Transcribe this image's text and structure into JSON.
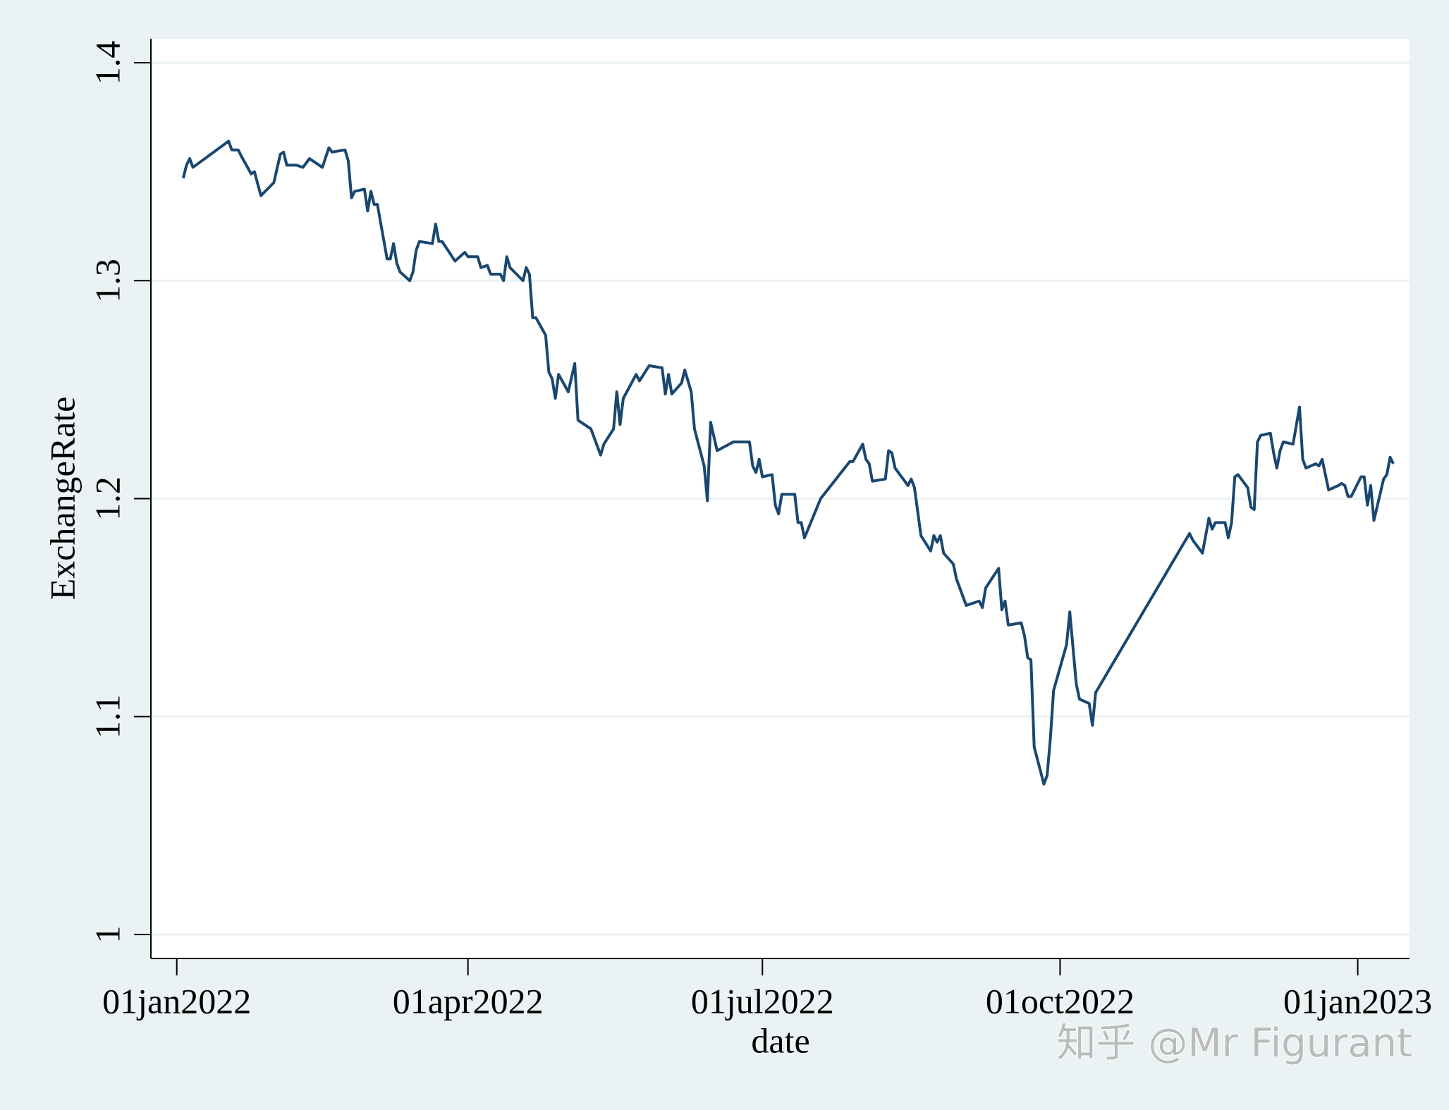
{
  "chart_data": {
    "type": "line",
    "y_label": "ExchangeRate",
    "x_label": "date",
    "watermark": "知乎 @Mr Figurant",
    "x": [
      "2022-01-03",
      "2022-01-04",
      "2022-01-05",
      "2022-01-06",
      "2022-01-17",
      "2022-01-18",
      "2022-01-20",
      "2022-01-21",
      "2022-01-24",
      "2022-01-25",
      "2022-01-27",
      "2022-01-31",
      "2022-02-02",
      "2022-02-03",
      "2022-02-04",
      "2022-02-07",
      "2022-02-09",
      "2022-02-11",
      "2022-02-15",
      "2022-02-17",
      "2022-02-18",
      "2022-02-22",
      "2022-02-23",
      "2022-02-24",
      "2022-02-25",
      "2022-02-28",
      "2022-03-01",
      "2022-03-02",
      "2022-03-03",
      "2022-03-04",
      "2022-03-07",
      "2022-03-08",
      "2022-03-09",
      "2022-03-10",
      "2022-03-11",
      "2022-03-14",
      "2022-03-15",
      "2022-03-16",
      "2022-03-17",
      "2022-03-21",
      "2022-03-22",
      "2022-03-23",
      "2022-03-24",
      "2022-03-28",
      "2022-03-31",
      "2022-04-01",
      "2022-04-04",
      "2022-04-05",
      "2022-04-07",
      "2022-04-08",
      "2022-04-11",
      "2022-04-12",
      "2022-04-13",
      "2022-04-14",
      "2022-04-18",
      "2022-04-19",
      "2022-04-20",
      "2022-04-21",
      "2022-04-22",
      "2022-04-25",
      "2022-04-26",
      "2022-04-27",
      "2022-04-28",
      "2022-04-29",
      "2022-05-02",
      "2022-05-04",
      "2022-05-05",
      "2022-05-09",
      "2022-05-12",
      "2022-05-13",
      "2022-05-16",
      "2022-05-17",
      "2022-05-18",
      "2022-05-19",
      "2022-05-23",
      "2022-05-24",
      "2022-05-27",
      "2022-05-31",
      "2022-06-01",
      "2022-06-02",
      "2022-06-03",
      "2022-06-06",
      "2022-06-07",
      "2022-06-09",
      "2022-06-10",
      "2022-06-13",
      "2022-06-14",
      "2022-06-15",
      "2022-06-17",
      "2022-06-22",
      "2022-06-27",
      "2022-06-28",
      "2022-06-29",
      "2022-06-30",
      "2022-07-01",
      "2022-07-04",
      "2022-07-05",
      "2022-07-06",
      "2022-07-07",
      "2022-07-11",
      "2022-07-12",
      "2022-07-13",
      "2022-07-14",
      "2022-07-19",
      "2022-07-28",
      "2022-07-29",
      "2022-08-01",
      "2022-08-02",
      "2022-08-03",
      "2022-08-04",
      "2022-08-08",
      "2022-08-09",
      "2022-08-10",
      "2022-08-11",
      "2022-08-15",
      "2022-08-16",
      "2022-08-17",
      "2022-08-19",
      "2022-08-22",
      "2022-08-23",
      "2022-08-24",
      "2022-08-25",
      "2022-08-26",
      "2022-08-29",
      "2022-08-30",
      "2022-09-01",
      "2022-09-02",
      "2022-09-06",
      "2022-09-07",
      "2022-09-08",
      "2022-09-12",
      "2022-09-13",
      "2022-09-14",
      "2022-09-15",
      "2022-09-19",
      "2022-09-20",
      "2022-09-21",
      "2022-09-22",
      "2022-09-23",
      "2022-09-26",
      "2022-09-27",
      "2022-09-28",
      "2022-09-29",
      "2022-10-03",
      "2022-10-04",
      "2022-10-06",
      "2022-10-07",
      "2022-10-10",
      "2022-10-11",
      "2022-10-12",
      "2022-11-10",
      "2022-11-11",
      "2022-11-14",
      "2022-11-16",
      "2022-11-17",
      "2022-11-18",
      "2022-11-21",
      "2022-11-22",
      "2022-11-23",
      "2022-11-24",
      "2022-11-25",
      "2022-11-28",
      "2022-11-29",
      "2022-11-30",
      "2022-12-01",
      "2022-12-02",
      "2022-12-05",
      "2022-12-06",
      "2022-12-07",
      "2022-12-08",
      "2022-12-09",
      "2022-12-12",
      "2022-12-14",
      "2022-12-15",
      "2022-12-16",
      "2022-12-19",
      "2022-12-20",
      "2022-12-21",
      "2022-12-22",
      "2022-12-23",
      "2022-12-26",
      "2022-12-27",
      "2022-12-28",
      "2022-12-29",
      "2022-12-30",
      "2023-01-02",
      "2023-01-03",
      "2023-01-04",
      "2023-01-05",
      "2023-01-06",
      "2023-01-09",
      "2023-01-10",
      "2023-01-11",
      "2023-01-12"
    ],
    "series": [
      {
        "color": "#1a476f",
        "values": [
          1.347,
          1.353,
          1.356,
          1.352,
          1.364,
          1.36,
          1.36,
          1.357,
          1.349,
          1.35,
          1.339,
          1.345,
          1.358,
          1.359,
          1.353,
          1.353,
          1.352,
          1.356,
          1.352,
          1.361,
          1.359,
          1.36,
          1.355,
          1.338,
          1.341,
          1.342,
          1.332,
          1.341,
          1.335,
          1.335,
          1.31,
          1.31,
          1.317,
          1.308,
          1.304,
          1.3,
          1.304,
          1.314,
          1.318,
          1.317,
          1.326,
          1.318,
          1.318,
          1.309,
          1.313,
          1.311,
          1.311,
          1.306,
          1.307,
          1.303,
          1.303,
          1.3,
          1.311,
          1.306,
          1.3,
          1.306,
          1.303,
          1.283,
          1.283,
          1.275,
          1.258,
          1.255,
          1.246,
          1.257,
          1.249,
          1.262,
          1.236,
          1.232,
          1.22,
          1.225,
          1.232,
          1.249,
          1.234,
          1.246,
          1.257,
          1.254,
          1.261,
          1.26,
          1.248,
          1.257,
          1.248,
          1.253,
          1.259,
          1.249,
          1.232,
          1.215,
          1.199,
          1.235,
          1.222,
          1.226,
          1.226,
          1.215,
          1.212,
          1.218,
          1.21,
          1.211,
          1.197,
          1.193,
          1.202,
          1.202,
          1.189,
          1.189,
          1.182,
          1.2,
          1.217,
          1.217,
          1.225,
          1.218,
          1.216,
          1.208,
          1.209,
          1.222,
          1.221,
          1.214,
          1.206,
          1.209,
          1.205,
          1.183,
          1.176,
          1.183,
          1.18,
          1.183,
          1.175,
          1.17,
          1.163,
          1.155,
          1.151,
          1.153,
          1.15,
          1.159,
          1.168,
          1.149,
          1.153,
          1.142,
          1.143,
          1.137,
          1.127,
          1.126,
          1.086,
          1.069,
          1.073,
          1.09,
          1.112,
          1.133,
          1.148,
          1.115,
          1.108,
          1.106,
          1.096,
          1.111,
          1.184,
          1.181,
          1.175,
          1.191,
          1.186,
          1.189,
          1.189,
          1.182,
          1.189,
          1.21,
          1.211,
          1.205,
          1.196,
          1.195,
          1.226,
          1.229,
          1.23,
          1.221,
          1.214,
          1.222,
          1.226,
          1.225,
          1.242,
          1.218,
          1.214,
          1.216,
          1.215,
          1.218,
          1.211,
          1.204,
          1.206,
          1.207,
          1.206,
          1.201,
          1.201,
          1.21,
          1.21,
          1.197,
          1.206,
          1.19,
          1.209,
          1.211,
          1.219,
          1.216
        ]
      }
    ],
    "xlim": [
      "2021-12-24",
      "2023-01-17"
    ],
    "xticks": [
      {
        "value": "2022-01-01",
        "label": "01jan2022"
      },
      {
        "value": "2022-04-01",
        "label": "01apr2022"
      },
      {
        "value": "2022-07-01",
        "label": "01jul2022"
      },
      {
        "value": "2022-10-01",
        "label": "01oct2022"
      },
      {
        "value": "2023-01-01",
        "label": "01jan2023"
      }
    ],
    "ylim": [
      0.989,
      1.411
    ],
    "yticks": [
      1,
      1.1,
      1.2,
      1.3,
      1.4
    ],
    "grid": true
  }
}
